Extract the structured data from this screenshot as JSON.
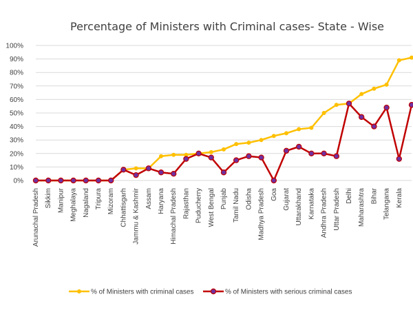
{
  "chart_data": {
    "type": "line",
    "title": "Percentage of Ministers with Criminal cases- State - Wise",
    "xlabel": "",
    "ylabel": "",
    "ylim": [
      0,
      100
    ],
    "yticks": [
      "0%",
      "10%",
      "20%",
      "30%",
      "40%",
      "50%",
      "60%",
      "70%",
      "80%",
      "90%",
      "100%"
    ],
    "grid": "horizontal",
    "legend_position": "bottom",
    "categories": [
      "Arunachal Pradesh",
      "Sikkim",
      "Manipur",
      "Meghalaya",
      "Nagaland",
      "Tripura",
      "Mizoram",
      "Chhattisgarh",
      "Jammu & Kashmir",
      "Assam",
      "Haryana",
      "Himachal Pradesh",
      "Rajasthan",
      "Puducherry",
      "West Bengal",
      "Punjab",
      "Tamil Nadu",
      "Odisha",
      "Madhya Pradesh",
      "Goa",
      "Gujarat",
      "Uttarakhand",
      "Karnataka",
      "Andhra Pradesh",
      "Uttar Pradesh",
      "Delhi",
      "Maharashtra",
      "Bihar",
      "Telangana",
      "Kerala",
      ""
    ],
    "series": [
      {
        "name": "% of Ministers with criminal cases",
        "color": "#FFC000",
        "values": [
          0,
          0,
          0,
          0,
          0,
          0,
          0,
          8,
          9,
          9,
          18,
          19,
          19,
          20,
          21,
          23,
          27,
          28,
          30,
          33,
          35,
          38,
          39,
          50,
          56,
          57,
          64,
          68,
          71,
          89,
          91
        ]
      },
      {
        "name": "% of Ministers with serious criminal cases",
        "color": "#C00000",
        "marker_color": "#7030A0",
        "values": [
          0,
          0,
          0,
          0,
          0,
          0,
          0,
          8,
          4,
          9,
          6,
          5,
          16,
          20,
          17,
          6,
          15,
          18,
          17,
          0,
          22,
          25,
          20,
          20,
          18,
          57,
          47,
          40,
          54,
          16,
          56
        ]
      }
    ]
  }
}
